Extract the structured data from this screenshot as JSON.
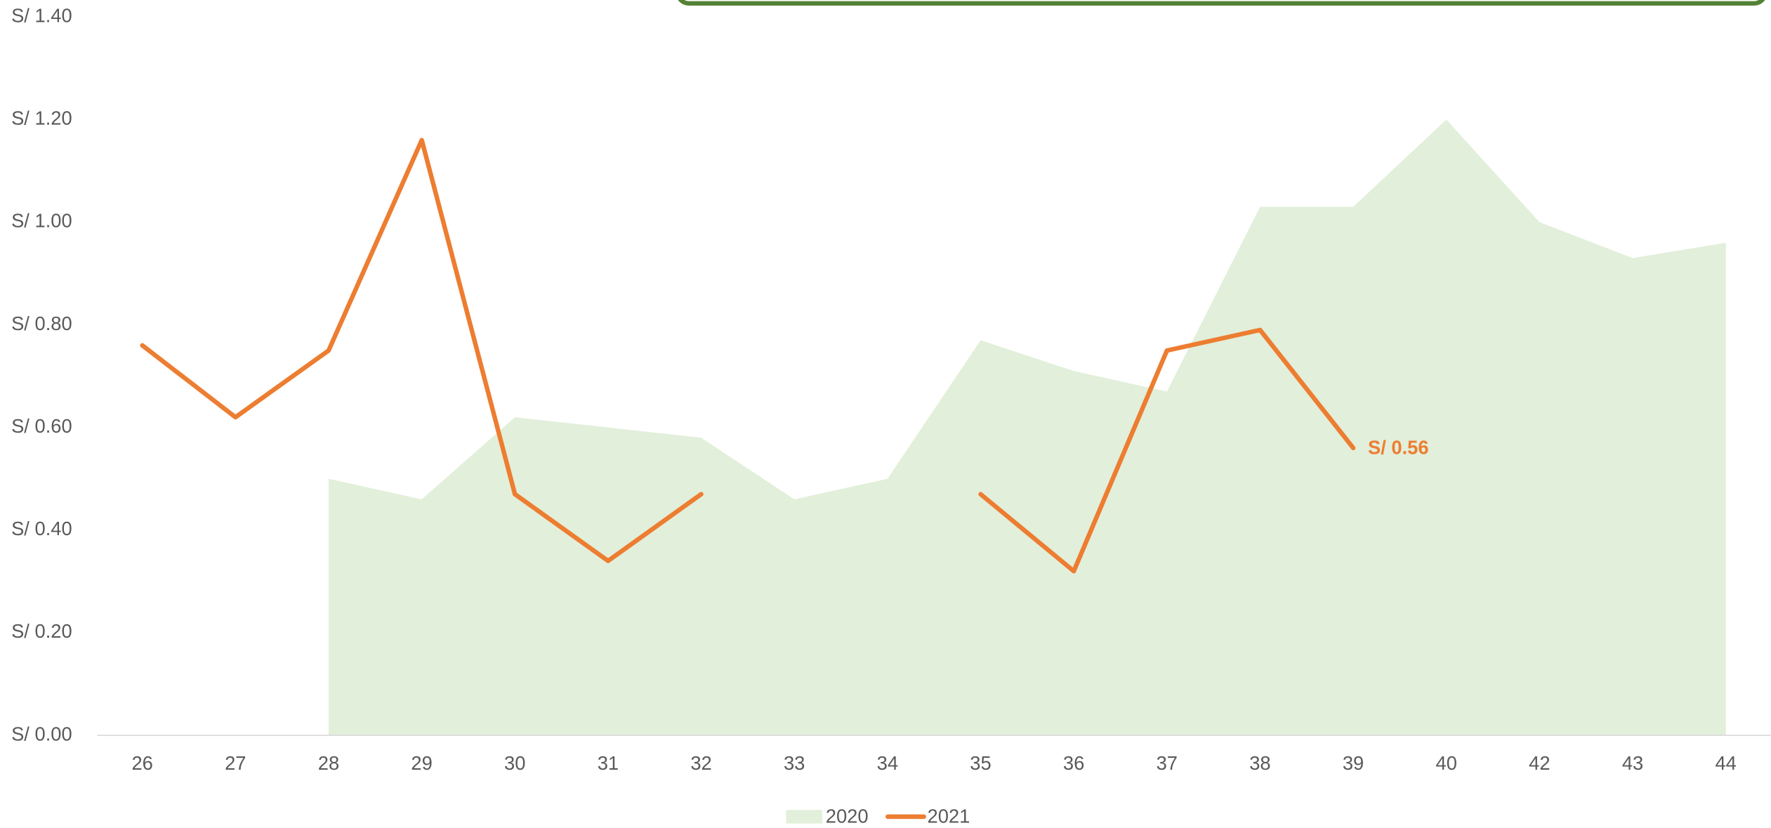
{
  "chart_data": {
    "type": "line",
    "categories": [
      "26",
      "27",
      "28",
      "29",
      "30",
      "31",
      "32",
      "33",
      "34",
      "35",
      "36",
      "37",
      "38",
      "39",
      "40",
      "42",
      "43",
      "44"
    ],
    "series": [
      {
        "name": "2020",
        "kind": "area",
        "color": "#e2efda",
        "values": [
          null,
          null,
          0.5,
          0.46,
          0.62,
          0.6,
          0.58,
          0.46,
          0.5,
          0.77,
          0.71,
          0.67,
          1.03,
          1.03,
          1.2,
          1.0,
          0.93,
          0.96
        ]
      },
      {
        "name": "2021",
        "kind": "line",
        "color": "#ed7d31",
        "values": [
          0.76,
          0.62,
          0.75,
          1.16,
          0.47,
          0.34,
          0.47,
          null,
          null,
          0.47,
          0.32,
          0.75,
          0.79,
          0.56,
          null,
          null,
          null,
          null
        ],
        "value_labels": [
          null,
          null,
          null,
          null,
          null,
          null,
          null,
          null,
          null,
          null,
          null,
          null,
          null,
          "S/ 0.56",
          null,
          null,
          null,
          null
        ]
      }
    ],
    "ylim": [
      0,
      1.4
    ],
    "yticks": [
      {
        "value": 0,
        "label": "S/ 0.00"
      },
      {
        "value": 0.2,
        "label": "S/ 0.20"
      },
      {
        "value": 0.4,
        "label": "S/ 0.40"
      },
      {
        "value": 0.6,
        "label": "S/ 0.60"
      },
      {
        "value": 0.8,
        "label": "S/ 0.80"
      },
      {
        "value": 1.0,
        "label": "S/ 1.00"
      },
      {
        "value": 1.2,
        "label": "S/ 1.20"
      },
      {
        "value": 1.4,
        "label": "S/ 1.40"
      }
    ],
    "grid": false,
    "legend": "bottom"
  }
}
